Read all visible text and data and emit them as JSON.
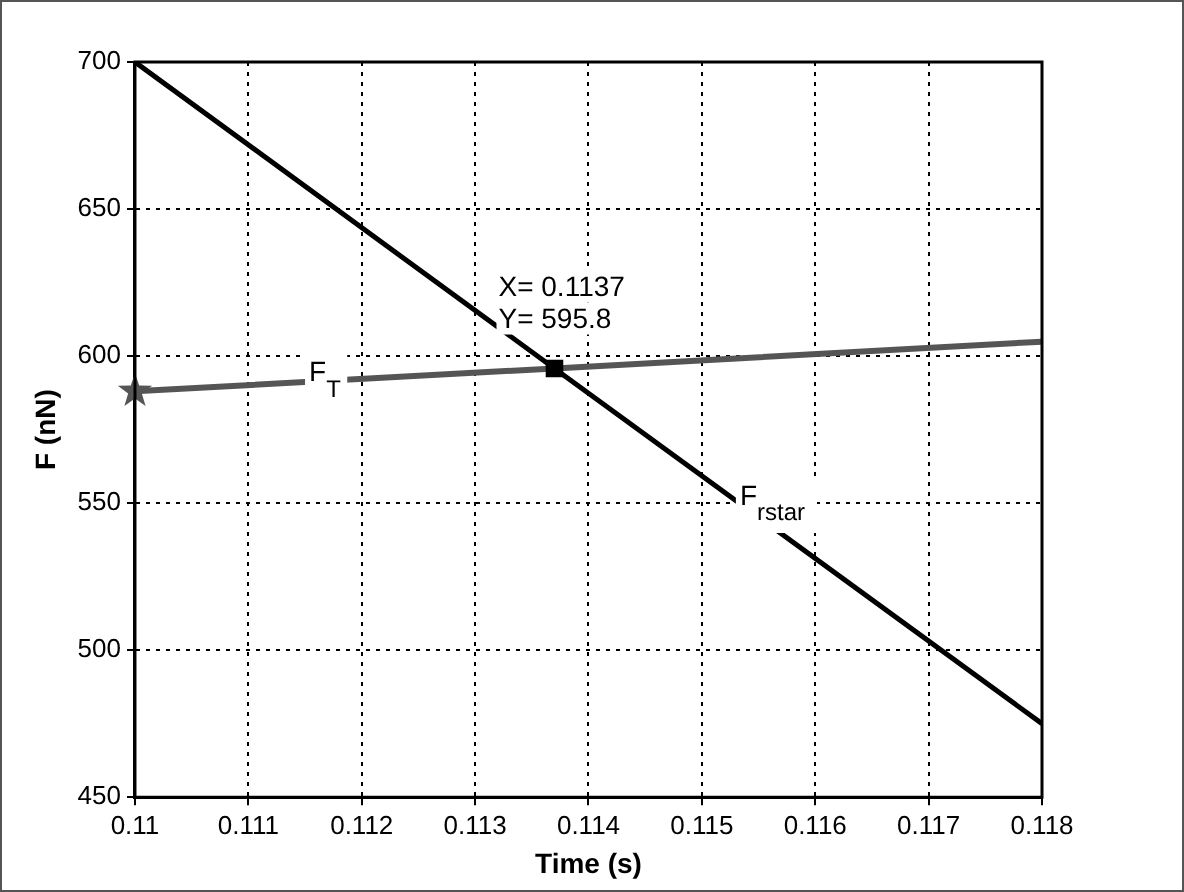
{
  "chart_data": {
    "type": "line",
    "xlabel": "Time (s)",
    "ylabel": "F (nN)",
    "series": [
      {
        "color": "#555555",
        "x": [
          0.11,
          0.1137,
          0.118
        ],
        "values": [
          588,
          595.8,
          604.9
        ],
        "marker": "none"
      },
      {
        "color": "#000000",
        "x": [
          0.11,
          0.1137,
          0.118
        ],
        "values": [
          700,
          595.8,
          475
        ],
        "marker": "none"
      },
      {
        "type": "scatter",
        "color": "#555555",
        "x": [
          0.11
        ],
        "values": [
          588
        ],
        "marker": "star"
      },
      {
        "type": "scatter",
        "color": "#000000",
        "x": [
          0.1137
        ],
        "values": [
          595.8
        ],
        "marker": "square"
      }
    ],
    "annotations": [
      {
        "text": "X= 0.1137\nY= 595.8",
        "x": 0.1137,
        "y": 595.8
      },
      {
        "text": "F$_{T}$",
        "x": 0.1115,
        "y": 590
      },
      {
        "text": "F$_{rstar}$",
        "x": 0.1153,
        "y": 548
      }
    ],
    "xlim": [
      0.11,
      0.118
    ],
    "xticks": [
      0.11,
      0.111,
      0.112,
      0.113,
      0.114,
      0.115,
      0.116,
      0.117,
      0.118
    ],
    "ylim": [
      450,
      700
    ],
    "yticks": [
      450,
      500,
      550,
      600,
      650,
      700
    ],
    "grid": true,
    "legend": false,
    "line_style": "solid"
  }
}
